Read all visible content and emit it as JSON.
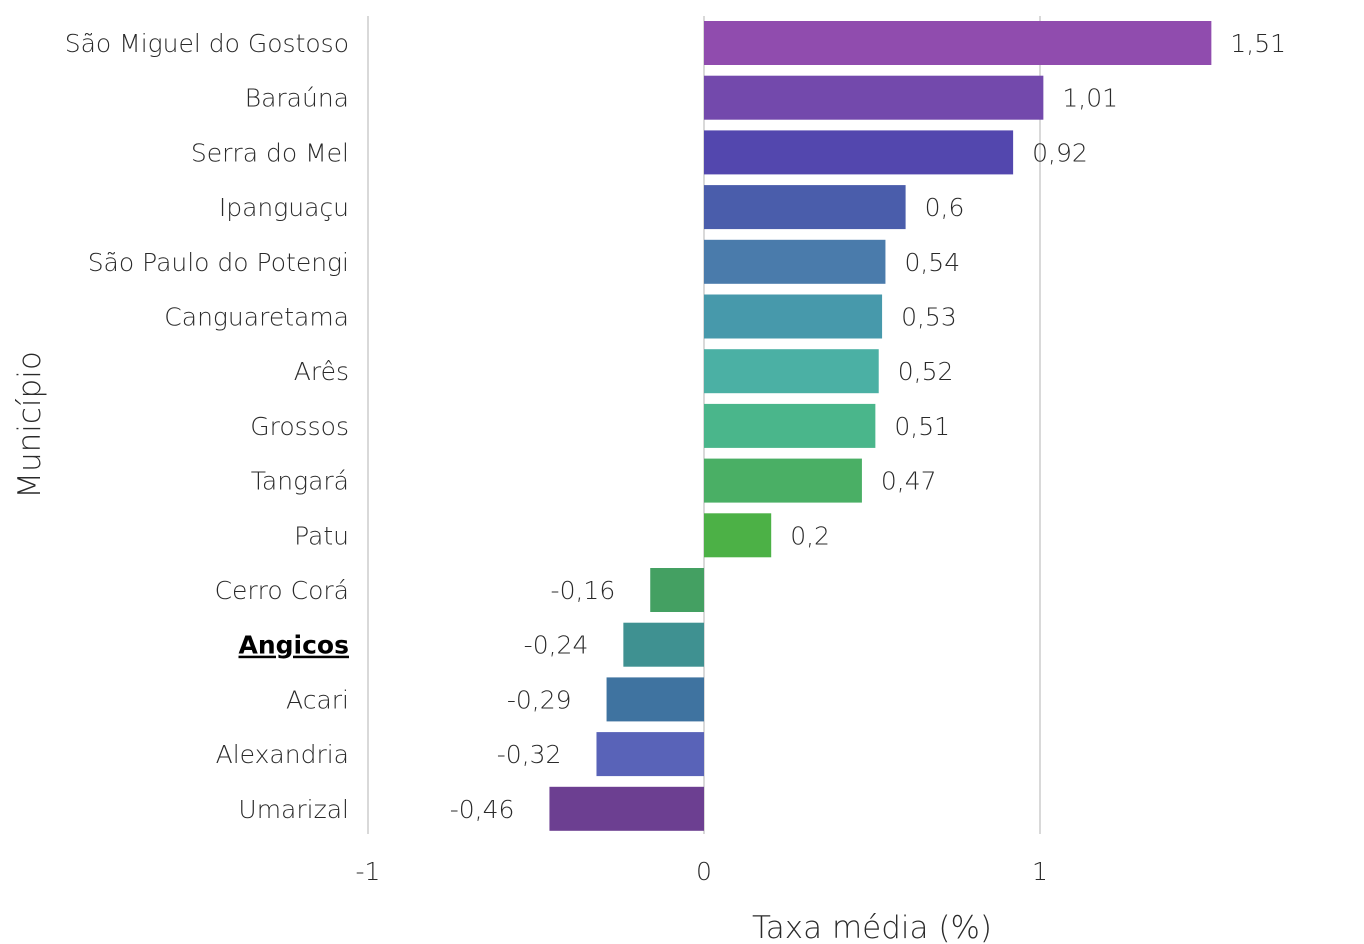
{
  "chart_data": {
    "type": "bar",
    "orientation": "horizontal",
    "title": "",
    "xlabel": "Taxa média (%)",
    "ylabel": "Município",
    "xlim": [
      -1,
      1.6
    ],
    "xticks": [
      -1,
      0,
      1
    ],
    "xtick_labels": [
      "-1",
      "0",
      "1"
    ],
    "grid": true,
    "legend": "none",
    "highlight_category": "Angicos",
    "categories": [
      "São Miguel do Gostoso",
      "Baraúna",
      "Serra do Mel",
      "Ipanguaçu",
      "São Paulo do Potengi",
      "Canguaretama",
      "Arês",
      "Grossos",
      "Tangará",
      "Patu",
      "Cerro Corá",
      "Angicos",
      "Acari",
      "Alexandria",
      "Umarizal"
    ],
    "values": [
      1.51,
      1.01,
      0.92,
      0.6,
      0.54,
      0.53,
      0.52,
      0.51,
      0.47,
      0.2,
      -0.16,
      -0.24,
      -0.29,
      -0.32,
      -0.46
    ],
    "value_labels": [
      "1,51",
      "1,01",
      "0,92",
      "0,6",
      "0,54",
      "0,53",
      "0,52",
      "0,51",
      "0,47",
      "0,2",
      "-0,16",
      "-0,24",
      "-0,29",
      "-0,32",
      "-0,46"
    ],
    "colors": [
      "#904cae",
      "#7349ac",
      "#5347ae",
      "#4a5dab",
      "#4a7bab",
      "#4799ab",
      "#4bb0a4",
      "#4ab68b",
      "#4aaf65",
      "#4cb146",
      "#44a062",
      "#3f9191",
      "#3f73a0",
      "#5963b8",
      "#6c3f91"
    ]
  }
}
